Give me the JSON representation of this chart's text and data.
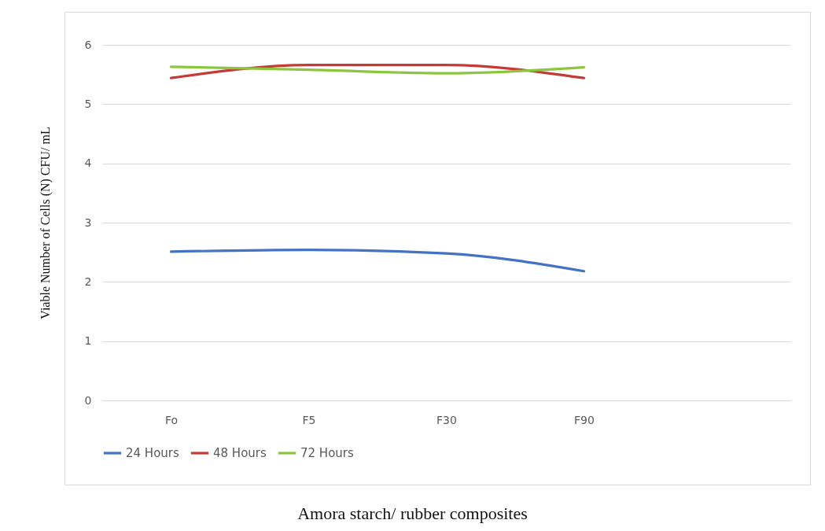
{
  "chart_data": {
    "type": "line",
    "xlabel": "Amora starch/ rubber composites",
    "ylabel": "Viable Number of Cells (N) CFU/ mL",
    "categories": [
      "Fo",
      "F5",
      "F30",
      "F90",
      null
    ],
    "series": [
      {
        "name": "24 Hours",
        "color": "#4472c4",
        "values": [
          2.51,
          2.54,
          2.48,
          2.18,
          null
        ]
      },
      {
        "name": "48 Hours",
        "color": "#c43b36",
        "values": [
          5.44,
          5.66,
          5.66,
          5.44,
          null
        ]
      },
      {
        "name": "72 Hours",
        "color": "#8cc63f",
        "values": [
          5.63,
          5.58,
          5.52,
          5.62,
          null
        ]
      }
    ],
    "ylim": [
      0,
      6
    ],
    "yticks": [
      0,
      1,
      2,
      3,
      4,
      5,
      6
    ],
    "grid": "y",
    "legend": "bottom",
    "marker": "none",
    "line_style": "solid"
  }
}
